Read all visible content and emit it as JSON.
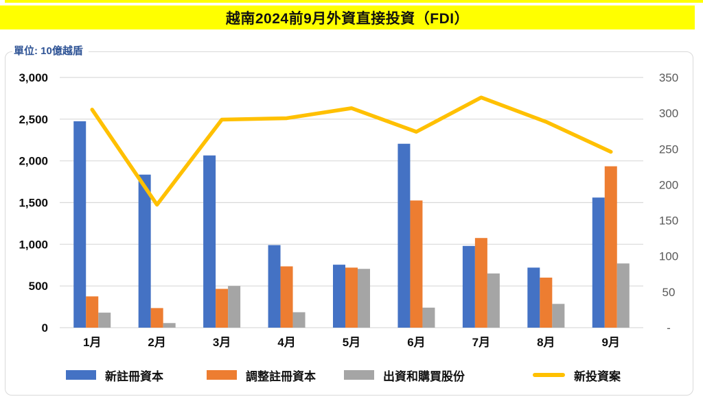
{
  "title": "越南2024前9月外資直接投資（FDI）",
  "unit_label": "單位: 10億越盾",
  "colors": {
    "title_background": "#FFFF00",
    "unit_label_text": "#2E5395",
    "gridline": "#D9D9D9",
    "frame_border": "#D9D9D9",
    "left_axis_text": "#0d0d0d",
    "right_axis_text": "#595959",
    "bar_blue": "#4472C4",
    "bar_orange": "#ED7D31",
    "bar_gray": "#A5A5A5",
    "line_yellow": "#FFC000"
  },
  "chart_data": {
    "type": "bar",
    "subtype": "grouped bars with secondary-axis line (combo)",
    "title": "越南2024前9月外資直接投資（FDI）",
    "xlabel": "",
    "ylabel_left": "10億越盾",
    "categories": [
      "1月",
      "2月",
      "3月",
      "4月",
      "5月",
      "6月",
      "7月",
      "8月",
      "9月"
    ],
    "series": [
      {
        "name": "新註冊資本",
        "type": "bar",
        "axis": "left",
        "color": "#4472C4",
        "values": [
          2475,
          1835,
          2065,
          990,
          755,
          2205,
          980,
          720,
          1560
        ]
      },
      {
        "name": "調整註冊資本",
        "type": "bar",
        "axis": "left",
        "color": "#ED7D31",
        "values": [
          375,
          235,
          465,
          735,
          720,
          1525,
          1075,
          600,
          1935
        ]
      },
      {
        "name": "出資和購買股份",
        "type": "bar",
        "axis": "left",
        "color": "#A5A5A5",
        "values": [
          180,
          55,
          500,
          185,
          705,
          240,
          650,
          285,
          770
        ]
      },
      {
        "name": "新投資案",
        "type": "line",
        "axis": "right",
        "color": "#FFC000",
        "values": [
          305,
          172,
          291,
          293,
          307,
          274,
          322,
          288,
          246
        ]
      }
    ],
    "left_axis": {
      "min": 0,
      "max": 3000,
      "step": 500,
      "tick_labels": [
        "0",
        "500",
        "1,000",
        "1,500",
        "2,000",
        "2,500",
        "3,000"
      ]
    },
    "right_axis": {
      "min": 0,
      "max": 350,
      "step": 50,
      "tick_labels": [
        "-",
        "50",
        "100",
        "150",
        "200",
        "250",
        "300",
        "350"
      ]
    },
    "grid": true,
    "legend_position": "bottom"
  }
}
